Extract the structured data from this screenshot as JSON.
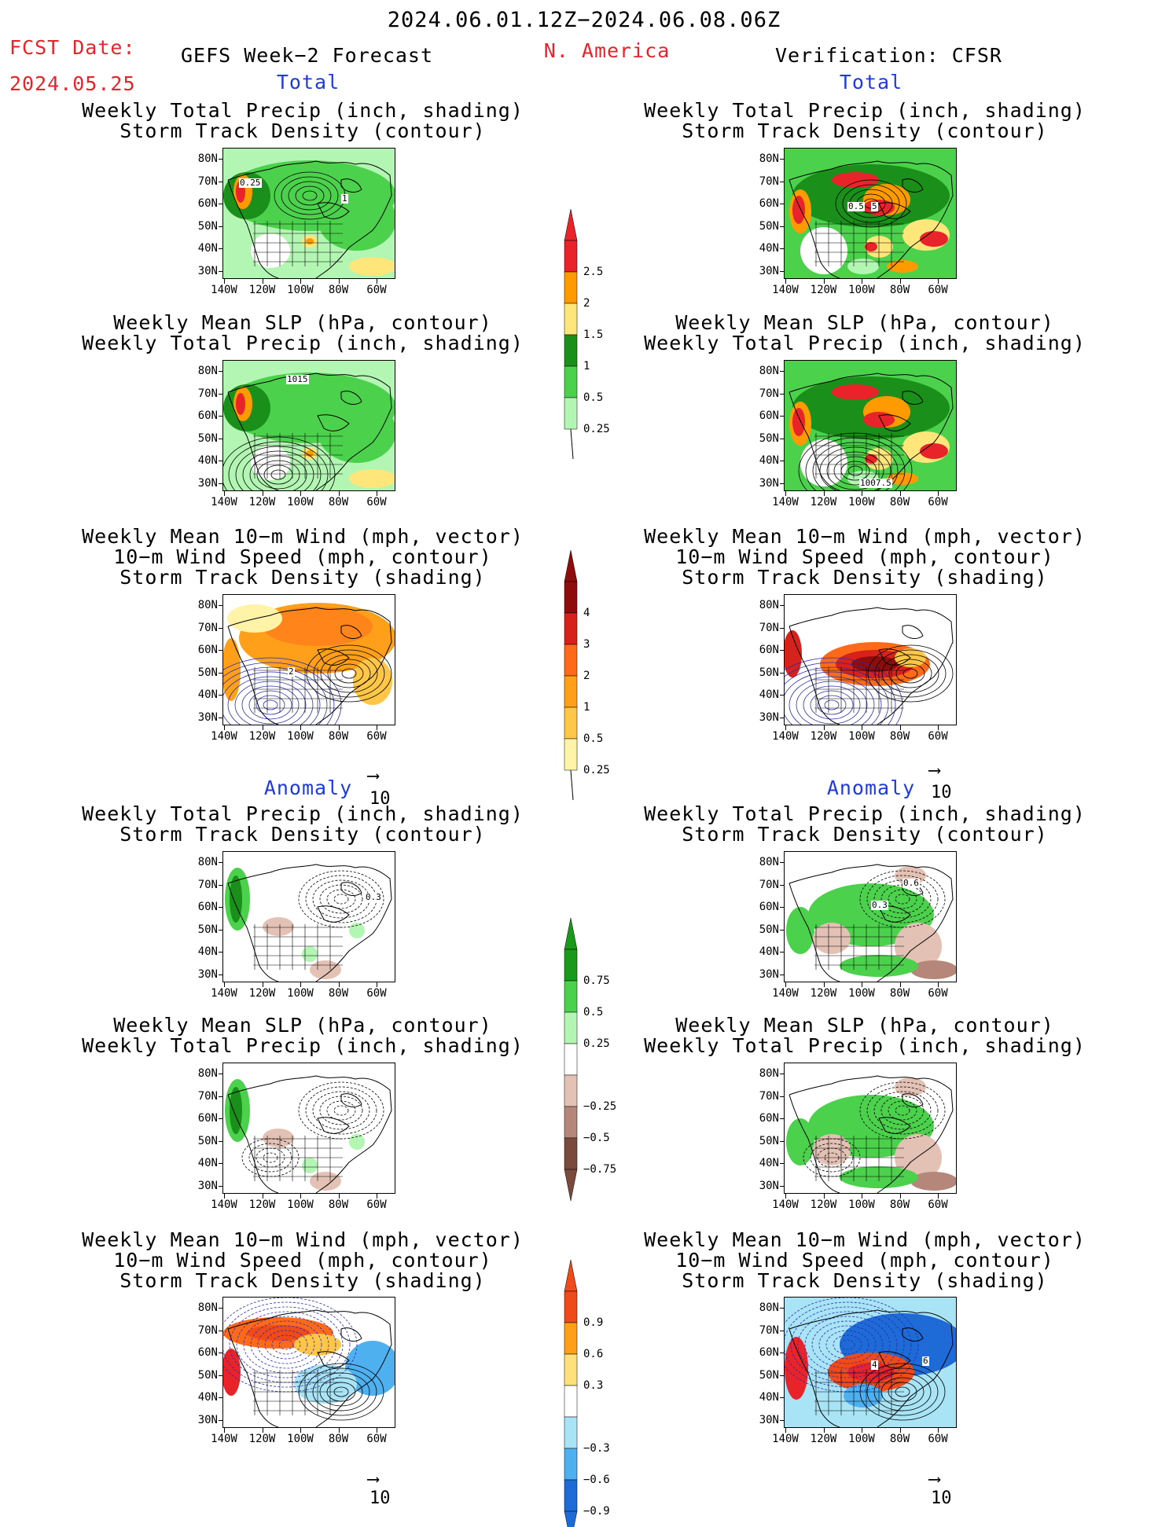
{
  "header": {
    "date_range": "2024.06.01.12Z−2024.06.08.06Z",
    "fcst_label": "FCST Date:",
    "fcst_date": "2024.05.25",
    "forecast_title": "GEFS Week−2 Forecast",
    "region": "N. America",
    "verification": "Verification: CFSR"
  },
  "sections": {
    "total": "Total",
    "anomaly": "Anomaly"
  },
  "panel_titles": {
    "precip_track": [
      "Weekly Total Precip (inch, shading)",
      "Storm Track Density (contour)"
    ],
    "slp_precip": [
      "Weekly Mean SLP (hPa, contour)",
      "Weekly Total Precip (inch, shading)"
    ],
    "wind_track": [
      "Weekly Mean 10−m Wind (mph, vector)",
      "10−m Wind Speed (mph, contour)",
      "Storm Track Density (shading)"
    ]
  },
  "axes": {
    "lat_labels": [
      "80N",
      "70N",
      "60N",
      "50N",
      "40N",
      "30N"
    ],
    "lon_labels": [
      "140W",
      "120W",
      "100W",
      "80W",
      "60W"
    ]
  },
  "vector_ref": "10",
  "contour_labels": {
    "p1_left": [
      "0.25",
      "1"
    ],
    "p1_right": [
      "0.5",
      "5"
    ],
    "p2_left": [
      "1015"
    ],
    "p2_right": [
      "1007.5"
    ],
    "p3_left": [
      "2"
    ],
    "p4_left": [
      "0.3"
    ],
    "p4_right": [
      "0.6",
      "0.3"
    ],
    "p6_right": [
      "4",
      "6"
    ]
  },
  "colorbars": {
    "precip_total": {
      "labels": [
        "2.5",
        "2",
        "1.5",
        "1",
        "0.5",
        "0.25"
      ],
      "colors": [
        "#e8232a",
        "#ff9b00",
        "#ffe67a",
        "#1a8f1a",
        "#4cd14c",
        "#b3f5b3"
      ]
    },
    "track_total": {
      "labels": [
        "4",
        "3",
        "2",
        "1",
        "0.5",
        "0.25"
      ],
      "colors": [
        "#8f0c0c",
        "#d6221a",
        "#ff6a1a",
        "#ff9f1a",
        "#ffc647",
        "#fff3a8"
      ]
    },
    "precip_anom": {
      "labels": [
        "0.75",
        "0.5",
        "0.25",
        "−0.25",
        "−0.5",
        "−0.75"
      ],
      "colors": [
        "#1a9a1a",
        "#4cd14c",
        "#b3f5b3",
        "#ffffff",
        "#e3c2b5",
        "#b5877a",
        "#7a4a3d"
      ]
    },
    "track_anom": {
      "labels": [
        "0.9",
        "0.6",
        "0.3",
        "−0.3",
        "−0.6",
        "−0.9"
      ],
      "colors": [
        "#ef4a1a",
        "#ff9f1a",
        "#ffe07a",
        "#ffffff",
        "#a8e4f5",
        "#4fb0f0",
        "#1e6ad6"
      ]
    }
  }
}
